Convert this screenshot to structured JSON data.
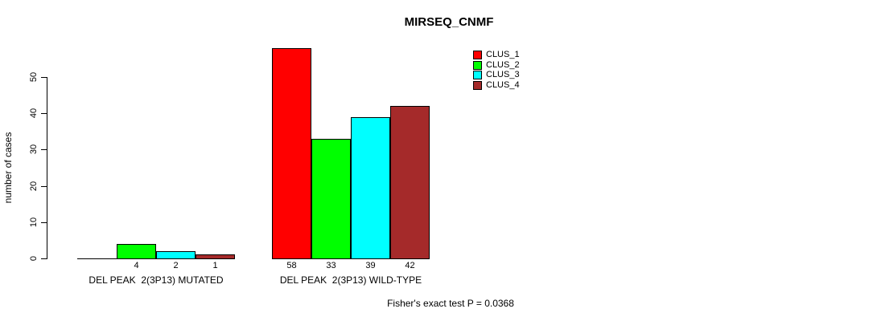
{
  "title": "MIRSEQ_CNMF",
  "y_axis": {
    "label": "number of cases"
  },
  "legend": {
    "entries": [
      {
        "label": "CLUS_1",
        "color": "#FF0000"
      },
      {
        "label": "CLUS_2",
        "color": "#00FF00"
      },
      {
        "label": "CLUS_3",
        "color": "#00FFFF"
      },
      {
        "label": "CLUS_4",
        "color": "#A52A2A"
      }
    ]
  },
  "footer": {
    "stat_text": "Fisher's exact test P = 0.0368"
  },
  "chart_data": {
    "type": "bar",
    "title": "MIRSEQ_CNMF",
    "xlabel": "",
    "ylabel": "number of cases",
    "ylim": [
      0,
      50
    ],
    "yticks": [
      0,
      10,
      20,
      30,
      40,
      50
    ],
    "grid": false,
    "legend_position": "top-right",
    "series": [
      "CLUS_1",
      "CLUS_2",
      "CLUS_3",
      "CLUS_4"
    ],
    "series_colors": [
      "#FF0000",
      "#00FF00",
      "#00FFFF",
      "#A52A2A"
    ],
    "groups": [
      {
        "label": "DEL PEAK  2(3P13) MUTATED",
        "values": [
          0,
          4,
          2,
          1
        ],
        "value_labels": [
          "",
          "4",
          "2",
          "1"
        ]
      },
      {
        "label": "DEL PEAK  2(3P13) WILD-TYPE",
        "values": [
          58,
          33,
          39,
          42
        ],
        "value_labels": [
          "58",
          "33",
          "39",
          "42"
        ]
      }
    ],
    "annotation": "Fisher's exact test P = 0.0368"
  }
}
